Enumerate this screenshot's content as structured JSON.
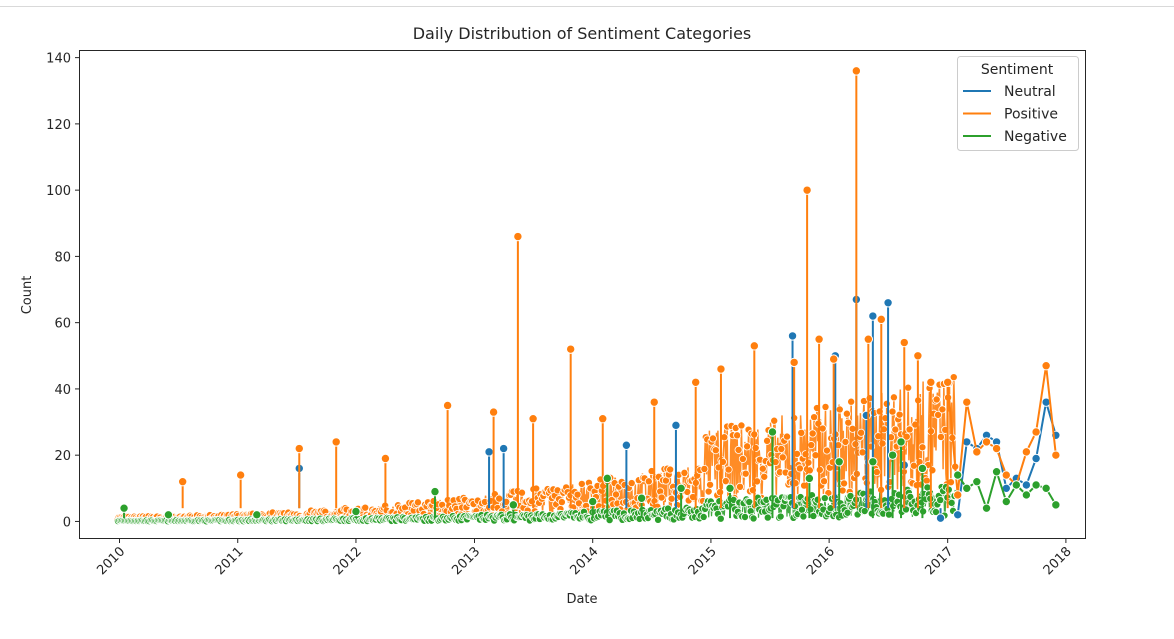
{
  "chart_data": {
    "type": "line",
    "title": "Daily Distribution of Sentiment Categories",
    "xlabel": "Date",
    "ylabel": "Count",
    "xlim": [
      "2009-09-01",
      "2018-03-01"
    ],
    "ylim": [
      -5,
      142
    ],
    "x_ticks": [
      "2010",
      "2011",
      "2012",
      "2013",
      "2014",
      "2015",
      "2016",
      "2017",
      "2018"
    ],
    "y_ticks": [
      0,
      20,
      40,
      60,
      80,
      100,
      120,
      140
    ],
    "grid": false,
    "legend": {
      "title": "Sentiment",
      "placement": "top-right"
    },
    "series": [
      {
        "name": "Neutral",
        "color": "#1f77b4",
        "points": [
          [
            "2011-07-10",
            16
          ],
          [
            "2013-02-15",
            21
          ],
          [
            "2013-04-01",
            22
          ],
          [
            "2014-04-15",
            23
          ],
          [
            "2014-09-15",
            29
          ],
          [
            "2015-09-10",
            56
          ],
          [
            "2016-01-20",
            50
          ],
          [
            "2016-03-25",
            67
          ],
          [
            "2016-04-25",
            32
          ],
          [
            "2016-05-15",
            62
          ],
          [
            "2016-07-01",
            66
          ],
          [
            "2016-08-20",
            17
          ],
          [
            "2016-12-10",
            1
          ],
          [
            "2017-02-01",
            2
          ],
          [
            "2017-03-01",
            24
          ],
          [
            "2017-04-01",
            22
          ],
          [
            "2017-05-01",
            26
          ],
          [
            "2017-06-01",
            24
          ],
          [
            "2017-07-01",
            10
          ],
          [
            "2017-08-01",
            13
          ],
          [
            "2017-09-01",
            11
          ],
          [
            "2017-10-01",
            19
          ],
          [
            "2017-11-01",
            36
          ],
          [
            "2017-12-01",
            26
          ]
        ]
      },
      {
        "name": "Positive",
        "color": "#ff7f0e",
        "points": [
          [
            "2010-07-15",
            12
          ],
          [
            "2011-01-10",
            14
          ],
          [
            "2011-07-10",
            22
          ],
          [
            "2011-11-01",
            24
          ],
          [
            "2012-04-01",
            19
          ],
          [
            "2012-10-10",
            35
          ],
          [
            "2013-03-01",
            33
          ],
          [
            "2013-05-15",
            86
          ],
          [
            "2013-07-01",
            31
          ],
          [
            "2013-10-25",
            52
          ],
          [
            "2014-02-01",
            31
          ],
          [
            "2014-07-10",
            36
          ],
          [
            "2014-11-15",
            42
          ],
          [
            "2015-02-01",
            46
          ],
          [
            "2015-05-15",
            53
          ],
          [
            "2015-09-15",
            48
          ],
          [
            "2015-10-25",
            100
          ],
          [
            "2015-12-01",
            55
          ],
          [
            "2016-01-15",
            49
          ],
          [
            "2016-03-25",
            136
          ],
          [
            "2016-05-01",
            55
          ],
          [
            "2016-06-10",
            61
          ],
          [
            "2016-08-20",
            54
          ],
          [
            "2016-10-01",
            50
          ],
          [
            "2016-11-10",
            42
          ],
          [
            "2017-01-01",
            42
          ],
          [
            "2017-02-01",
            8
          ],
          [
            "2017-03-01",
            36
          ],
          [
            "2017-04-01",
            21
          ],
          [
            "2017-05-01",
            24
          ],
          [
            "2017-06-01",
            22
          ],
          [
            "2017-07-01",
            14
          ],
          [
            "2017-08-01",
            11
          ],
          [
            "2017-09-01",
            21
          ],
          [
            "2017-10-01",
            27
          ],
          [
            "2017-11-01",
            47
          ],
          [
            "2017-12-01",
            20
          ]
        ]
      },
      {
        "name": "Negative",
        "color": "#2ca02c",
        "points": [
          [
            "2010-01-15",
            4
          ],
          [
            "2010-06-01",
            2
          ],
          [
            "2011-03-01",
            2
          ],
          [
            "2012-01-01",
            3
          ],
          [
            "2012-09-01",
            9
          ],
          [
            "2013-05-01",
            5
          ],
          [
            "2014-01-01",
            6
          ],
          [
            "2014-02-15",
            13
          ],
          [
            "2014-06-01",
            7
          ],
          [
            "2014-10-01",
            10
          ],
          [
            "2015-03-01",
            10
          ],
          [
            "2015-07-10",
            27
          ],
          [
            "2015-11-01",
            13
          ],
          [
            "2016-02-01",
            18
          ],
          [
            "2016-05-15",
            18
          ],
          [
            "2016-07-15",
            20
          ],
          [
            "2016-08-10",
            24
          ],
          [
            "2016-10-15",
            16
          ],
          [
            "2017-02-01",
            14
          ],
          [
            "2017-03-01",
            10
          ],
          [
            "2017-04-01",
            12
          ],
          [
            "2017-05-01",
            4
          ],
          [
            "2017-06-01",
            15
          ],
          [
            "2017-07-01",
            6
          ],
          [
            "2017-08-01",
            11
          ],
          [
            "2017-09-01",
            8
          ],
          [
            "2017-10-01",
            11
          ],
          [
            "2017-11-01",
            10
          ],
          [
            "2017-12-01",
            5
          ]
        ]
      }
    ]
  }
}
